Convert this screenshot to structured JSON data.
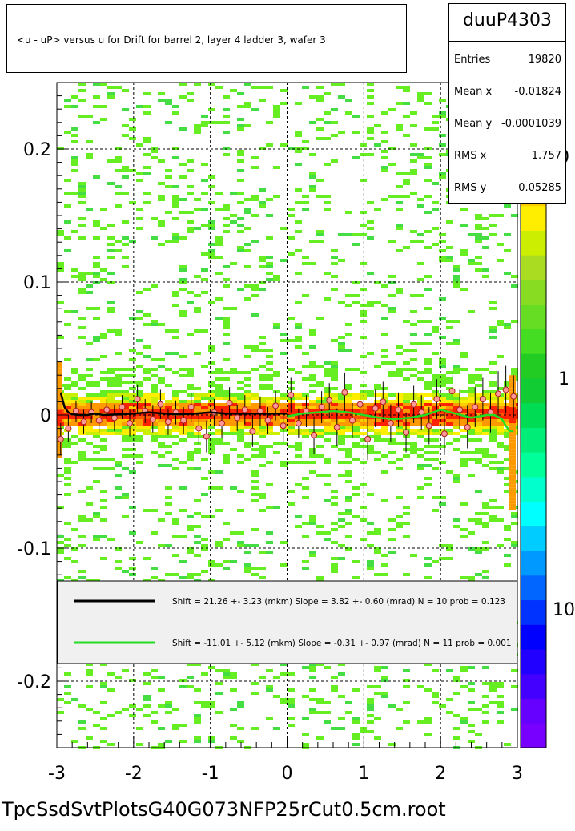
{
  "title": "<u - uP>       versus   u for Drift for barrel 2, layer 4 ladder 3, wafer 3",
  "stats": {
    "name": "duuP4303",
    "rows": [
      {
        "label": "Entries",
        "value": "19820"
      },
      {
        "label": "Mean x",
        "value": "-0.01824"
      },
      {
        "label": "Mean y",
        "value": "-0.0001039"
      },
      {
        "label": "RMS x",
        "value": "1.757"
      },
      {
        "label": "RMS y",
        "value": "0.05285"
      }
    ]
  },
  "footer": "TpcSsdSvtPlotsG40G073NFP25rCut0.5cm.root",
  "colors": {
    "black_fit": "#000000",
    "green_fit": "#22dd22",
    "points_fill": "#ff9999",
    "legend_bg": "#f0f0f0",
    "green_hist": "#66ee22",
    "orange_hist": "#ff9900",
    "red_hist": "#ff2200"
  },
  "chart_data": {
    "type": "heatmap",
    "x_range": [
      -3,
      3
    ],
    "y_range": [
      -0.25,
      0.25
    ],
    "x_ticks": [
      "-3",
      "-2",
      "-1",
      "0",
      "1",
      "2",
      "3"
    ],
    "y_ticks": [
      "-0.2",
      "-0.1",
      "0",
      "0.1",
      "0.2"
    ],
    "colorbar_ticks": [
      "1",
      "10"
    ],
    "colorbar_top_label": "0",
    "grid": true,
    "legend": {
      "placement": "bottom-inside",
      "entries": [
        {
          "text": "Shift =    21.26 +- 3.23 (mkm) Slope =     3.82 +- 0.60 (mrad)  N = 10 prob = 0.123",
          "color": "#000000"
        },
        {
          "text": "Shift =   -11.01 +- 5.12 (mkm) Slope =    -0.31 +- 0.97 (mrad)  N = 11 prob = 0.001",
          "color": "#22dd22"
        }
      ]
    },
    "fit_black": {
      "x": [
        -2.95,
        -2.9,
        -2.85,
        -2.8,
        -2.7,
        -2.6,
        -2.5,
        -2.4,
        -2.2,
        -2.0,
        -1.8,
        -1.6,
        -1.4,
        -1.2,
        -1.0,
        -0.8,
        -0.6,
        -0.4,
        -0.2,
        0.0
      ],
      "y": [
        0.017,
        0.006,
        0.002,
        0.0005,
        0.0,
        0.0,
        0.001,
        0.0,
        0.0005,
        0.001,
        0.002,
        0.001,
        0.0005,
        0.001,
        0.002,
        0.001,
        0.001,
        0.001,
        0.001,
        0.001
      ]
    },
    "fit_green": {
      "x": [
        0.0,
        0.2,
        0.4,
        0.6,
        0.8,
        1.0,
        1.2,
        1.4,
        1.6,
        1.8,
        2.0,
        2.2,
        2.4,
        2.6,
        2.7,
        2.8,
        2.85,
        2.9,
        2.95
      ],
      "y": [
        -0.001,
        0.001,
        0.002,
        0.003,
        0.002,
        0.0,
        -0.002,
        -0.003,
        -0.002,
        0.0,
        0.004,
        0.001,
        -0.002,
        0.0,
        0.0,
        -0.003,
        -0.008,
        -0.012,
        -0.012
      ]
    },
    "profile_points": {
      "x": [
        -2.95,
        -2.85,
        -2.75,
        -2.65,
        -2.55,
        -2.45,
        -2.35,
        -2.25,
        -2.15,
        -2.05,
        -1.95,
        -1.85,
        -1.75,
        -1.65,
        -1.55,
        -1.45,
        -1.35,
        -1.25,
        -1.15,
        -1.05,
        -0.95,
        -0.85,
        -0.75,
        -0.65,
        -0.55,
        -0.45,
        -0.35,
        -0.25,
        -0.15,
        -0.05,
        0.05,
        0.15,
        0.25,
        0.35,
        0.45,
        0.55,
        0.65,
        0.75,
        0.85,
        0.95,
        1.05,
        1.15,
        1.25,
        1.35,
        1.45,
        1.55,
        1.65,
        1.75,
        1.85,
        1.95,
        2.05,
        2.15,
        2.25,
        2.35,
        2.45,
        2.55,
        2.65,
        2.75,
        2.85,
        2.95
      ],
      "y": [
        -0.018,
        -0.01,
        0.003,
        -0.005,
        0.002,
        -0.004,
        0.004,
        -0.002,
        0.006,
        -0.006,
        0.012,
        0.003,
        -0.003,
        0.008,
        -0.005,
        0.002,
        -0.004,
        0.006,
        -0.01,
        -0.016,
        0.002,
        -0.006,
        0.009,
        -0.002,
        0.004,
        -0.012,
        0.003,
        -0.004,
        0.007,
        -0.008,
        0.015,
        -0.006,
        0.003,
        -0.015,
        0.006,
        0.011,
        -0.009,
        0.017,
        -0.004,
        0.008,
        -0.018,
        0.005,
        0.01,
        -0.006,
        0.004,
        -0.013,
        0.008,
        0.002,
        -0.008,
        0.012,
        -0.014,
        0.018,
        0.004,
        -0.009,
        0.006,
        0.012,
        0.002,
        0.016,
        0.019,
        0.014
      ],
      "err": [
        0.012,
        0.01,
        0.008,
        0.009,
        0.008,
        0.009,
        0.008,
        0.01,
        0.009,
        0.01,
        0.011,
        0.009,
        0.01,
        0.011,
        0.01,
        0.009,
        0.01,
        0.011,
        0.012,
        0.012,
        0.01,
        0.011,
        0.012,
        0.01,
        0.011,
        0.012,
        0.011,
        0.01,
        0.011,
        0.012,
        0.013,
        0.011,
        0.012,
        0.014,
        0.012,
        0.013,
        0.014,
        0.015,
        0.013,
        0.014,
        0.016,
        0.014,
        0.015,
        0.014,
        0.013,
        0.015,
        0.014,
        0.013,
        0.014,
        0.015,
        0.016,
        0.017,
        0.015,
        0.016,
        0.015,
        0.016,
        0.015,
        0.017,
        0.018,
        0.016
      ]
    }
  }
}
